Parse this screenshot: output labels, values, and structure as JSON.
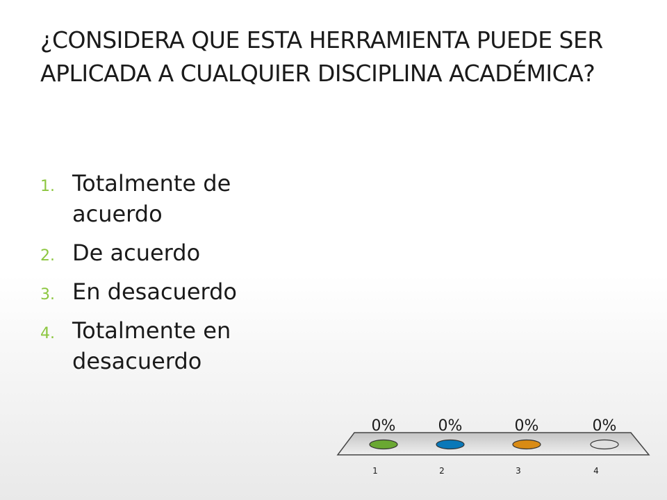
{
  "slide": {
    "title": "¿CONSIDERA QUE ESTA HERRAMIENTA PUEDE SER APLICADA A CUALQUIER DISCIPLINA ACADÉMICA?"
  },
  "options": [
    {
      "number": "1.",
      "label": "Totalmente de acuerdo"
    },
    {
      "number": "2.",
      "label": "De acuerdo"
    },
    {
      "number": "3.",
      "label": "En desacuerdo"
    },
    {
      "number": "4.",
      "label": "Totalmente en desacuerdo"
    }
  ],
  "chart_data": {
    "type": "bar",
    "categories": [
      "1",
      "2",
      "3",
      "4"
    ],
    "values": [
      0,
      0,
      0,
      0
    ],
    "value_labels": [
      "0%",
      "0%",
      "0%",
      "0%"
    ],
    "ylim": [
      0,
      100
    ],
    "colors": [
      "#6aa832",
      "#0a78b8",
      "#d98b14",
      "#e0e0e0"
    ],
    "grid": false,
    "title": "",
    "xlabel": "",
    "ylabel": ""
  }
}
